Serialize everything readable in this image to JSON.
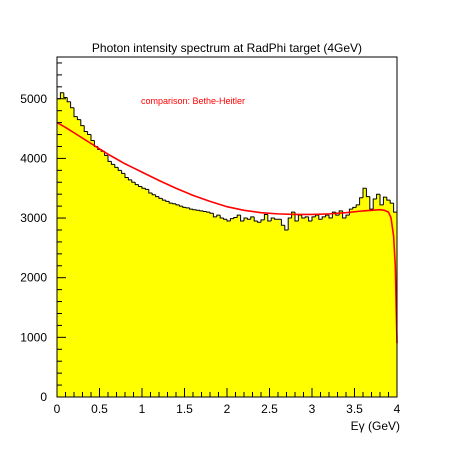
{
  "chart_data": {
    "type": "histogram",
    "title": "Photon intensity spectrum at RadPhi target (4GeV)",
    "xlabel": "Eγ (GeV)",
    "ylabel": "",
    "xlim": [
      0,
      4
    ],
    "ylim": [
      0,
      5700
    ],
    "x_ticks": [
      0,
      0.5,
      1,
      1.5,
      2,
      2.5,
      3,
      3.5,
      4
    ],
    "x_tick_labels": [
      "0",
      "0.5",
      "1",
      "1.5",
      "2",
      "2.5",
      "3",
      "3.5",
      "4"
    ],
    "y_ticks": [
      0,
      1000,
      2000,
      3000,
      4000,
      5000
    ],
    "y_tick_labels": [
      "0",
      "1000",
      "2000",
      "3000",
      "4000",
      "5000"
    ],
    "grid": false,
    "annotation": "comparison: Bethe-Heitler",
    "bin_width": 0.04,
    "histogram_bins": [
      5000,
      5100,
      5020,
      4950,
      4850,
      4700,
      4650,
      4550,
      4450,
      4400,
      4300,
      4200,
      4150,
      4120,
      4050,
      3950,
      3900,
      3850,
      3800,
      3750,
      3680,
      3640,
      3600,
      3560,
      3530,
      3500,
      3480,
      3420,
      3390,
      3360,
      3330,
      3300,
      3280,
      3250,
      3240,
      3220,
      3200,
      3180,
      3170,
      3150,
      3140,
      3130,
      3120,
      3110,
      3100,
      3080,
      3020,
      3050,
      3000,
      2980,
      2950,
      2990,
      3010,
      3050,
      2950,
      3000,
      2980,
      3020,
      2950,
      2930,
      2970,
      3060,
      2950,
      3000,
      2980,
      2980,
      2880,
      2800,
      3000,
      3100,
      2950,
      3050,
      3000,
      3020,
      2950,
      3020,
      3050,
      2980,
      3020,
      3050,
      3000,
      3100,
      3050,
      3120,
      3000,
      3050,
      3150,
      3180,
      3220,
      3340,
      3500,
      3360,
      3150,
      3320,
      3400,
      3220,
      3350,
      3300,
      3250,
      3100
    ],
    "histogram_fill": "#ffff00",
    "histogram_stroke": "#000000",
    "series": [
      {
        "name": "Bethe-Heitler",
        "color": "#ff0000",
        "x": [
          0,
          0.1,
          0.2,
          0.3,
          0.4,
          0.5,
          0.6,
          0.7,
          0.8,
          0.9,
          1.0,
          1.2,
          1.4,
          1.6,
          1.8,
          2.0,
          2.2,
          2.4,
          2.6,
          2.8,
          3.0,
          3.2,
          3.4,
          3.6,
          3.7,
          3.8,
          3.85,
          3.9,
          3.93,
          3.96,
          3.98,
          4.0
        ],
        "y": [
          4600,
          4520,
          4430,
          4340,
          4250,
          4160,
          4070,
          3990,
          3910,
          3840,
          3770,
          3630,
          3500,
          3380,
          3280,
          3190,
          3130,
          3090,
          3070,
          3060,
          3060,
          3070,
          3090,
          3120,
          3130,
          3140,
          3130,
          3100,
          3000,
          2700,
          2200,
          900
        ]
      }
    ]
  }
}
